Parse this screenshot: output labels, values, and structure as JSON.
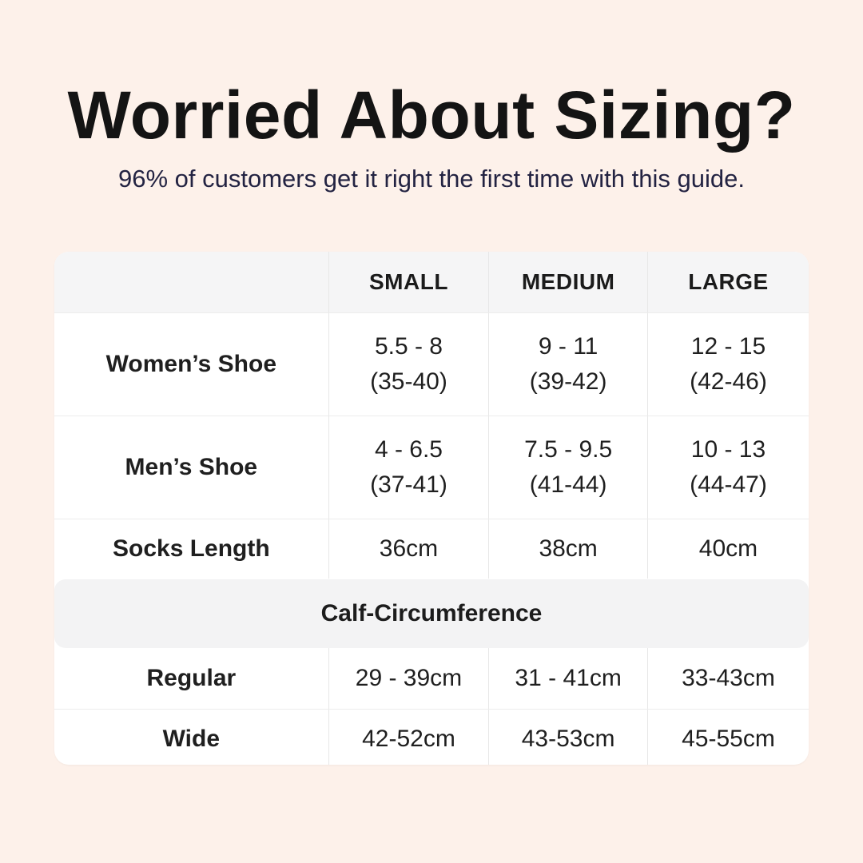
{
  "canvas": {
    "background_color": "#fdf1ea",
    "card_background": "#ffffff",
    "header_row_color": "#f5f5f6",
    "section_band_color": "#f3f3f4",
    "subtitle_color": "#232342",
    "text_color": "#1f1f1f"
  },
  "header": {
    "title": "Worried About Sizing?",
    "subtitle": "96% of customers get it right the first time with this guide."
  },
  "table": {
    "columns": [
      "SMALL",
      "MEDIUM",
      "LARGE"
    ],
    "rows": [
      {
        "label": "Women’s Shoe",
        "cells": [
          [
            "5.5 - 8",
            "(35-40)"
          ],
          [
            "9 - 11",
            "(39-42)"
          ],
          [
            "12 - 15",
            "(42-46)"
          ]
        ]
      },
      {
        "label": "Men’s Shoe",
        "cells": [
          [
            "4 - 6.5",
            "(37-41)"
          ],
          [
            "7.5 - 9.5",
            "(41-44)"
          ],
          [
            "10 - 13",
            "(44-47)"
          ]
        ]
      },
      {
        "label": "Socks Length",
        "cells": [
          "36cm",
          "38cm",
          "40cm"
        ]
      }
    ],
    "section_header": "Calf-Circumference",
    "section_rows": [
      {
        "label": "Regular",
        "cells": [
          "29 - 39cm",
          "31 - 41cm",
          "33-43cm"
        ]
      },
      {
        "label": "Wide",
        "cells": [
          "42-52cm",
          "43-53cm",
          "45-55cm"
        ]
      }
    ]
  },
  "chart_data": {
    "type": "table",
    "title": "Worried About Sizing?",
    "subtitle": "96% of customers get it right the first time with this guide.",
    "columns": [
      "",
      "SMALL",
      "MEDIUM",
      "LARGE"
    ],
    "rows": [
      [
        "Women’s Shoe",
        "5.5 - 8 (35-40)",
        "9 - 11 (39-42)",
        "12 - 15 (42-46)"
      ],
      [
        "Men’s Shoe",
        "4 - 6.5 (37-41)",
        "7.5 - 9.5 (41-44)",
        "10 - 13 (44-47)"
      ],
      [
        "Socks Length",
        "36cm",
        "38cm",
        "40cm"
      ],
      [
        "Calf-Circumference",
        "",
        "",
        ""
      ],
      [
        "Regular",
        "29 - 39cm",
        "31 - 41cm",
        "33-43cm"
      ],
      [
        "Wide",
        "42-52cm",
        "43-53cm",
        "45-55cm"
      ]
    ],
    "layout": {
      "section_header_row_index": 3,
      "grid": true,
      "legend_position": "none"
    }
  }
}
